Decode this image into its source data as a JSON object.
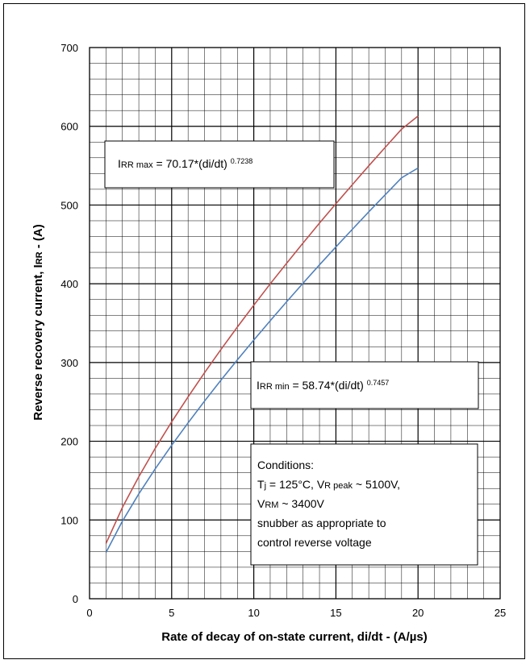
{
  "chart_data": {
    "type": "line",
    "xlabel": "Rate of decay of on-state current, di/dt - (A/µs)",
    "ylabel": {
      "prefix": "Reverse recovery current, I",
      "sub": "RR",
      "suffix": " - (A)"
    },
    "xlim": [
      0,
      25
    ],
    "ylim": [
      0,
      700
    ],
    "x_ticks": [
      "0",
      "5",
      "10",
      "15",
      "20",
      "25"
    ],
    "y_ticks": [
      "0",
      "100",
      "200",
      "300",
      "400",
      "500",
      "600",
      "700"
    ],
    "grid": true,
    "series": [
      {
        "color": "#c0504d",
        "coef": 70.17,
        "exp": 0.7238,
        "x": [
          1,
          2,
          3,
          4,
          5,
          6,
          7,
          8,
          9,
          10,
          11,
          12,
          13,
          14,
          15,
          16,
          17,
          18,
          19,
          20
        ],
        "values": [
          70.2,
          115.8,
          155.0,
          191.0,
          224.6,
          256.5,
          287.0,
          316.5,
          345.0,
          372.7,
          399.9,
          426.0,
          451.8,
          477.0,
          501.7,
          525.9,
          549.8,
          573.2,
          596.3,
          613.0
        ]
      },
      {
        "color": "#4f81bd",
        "coef": 58.74,
        "exp": 0.7457,
        "x": [
          1,
          2,
          3,
          4,
          5,
          6,
          7,
          8,
          9,
          10,
          11,
          12,
          13,
          14,
          15,
          16,
          17,
          18,
          19,
          20
        ],
        "values": [
          58.7,
          98.4,
          133.2,
          165.0,
          194.9,
          223.4,
          250.9,
          277.5,
          303.3,
          328.5,
          353.1,
          377.1,
          400.8,
          424.0,
          446.8,
          469.2,
          491.3,
          513.0,
          534.5,
          547.0
        ]
      }
    ],
    "annotations": {
      "max_formula": {
        "prefix": "I",
        "sub": "RR max",
        "eq": " = 70.17*(di/dt) ",
        "sup": "0.7238"
      },
      "min_formula": {
        "prefix": "I",
        "sub": "RR min",
        "eq": " = 58.74*(di/dt) ",
        "sup": "0.7457"
      },
      "conditions": {
        "title": "Conditions:",
        "line1_a": "T",
        "line1_sub1": "j",
        "line1_b": " = 125°C, V",
        "line1_sub2": "R peak",
        "line1_c": " ~ 5100V,",
        "line2_a": "V",
        "line2_sub": "RM",
        "line2_b": " ~ 3400V",
        "line3": "snubber as appropriate to",
        "line4": "control reverse voltage"
      }
    }
  }
}
